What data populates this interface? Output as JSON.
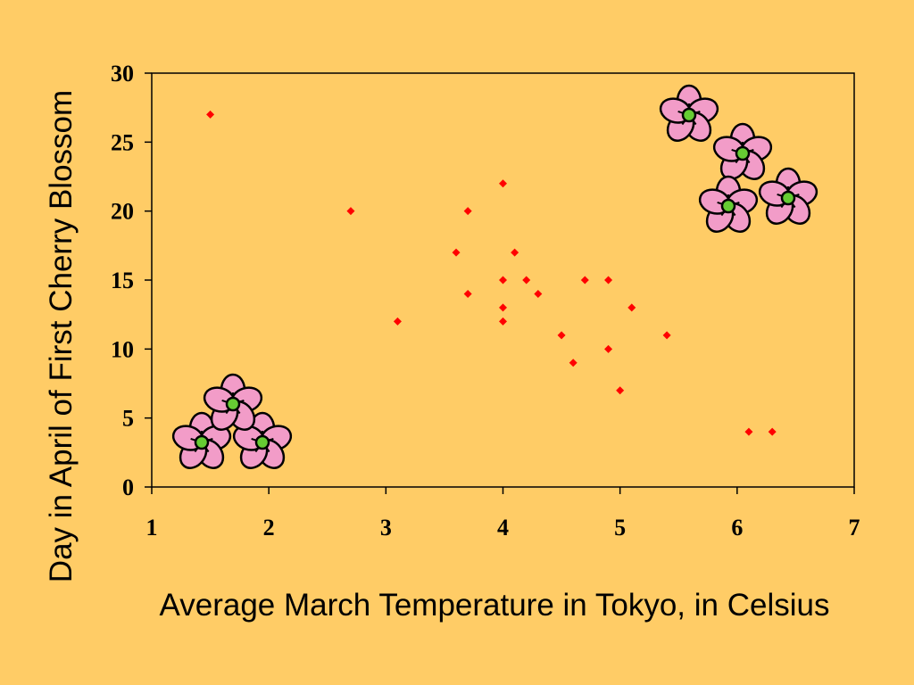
{
  "colors": {
    "background": "#FFCC66",
    "marker": "#FF0000",
    "axis": "#000000",
    "petal": "#F29CC8",
    "flower_center": "#66CC33"
  },
  "decorations": {
    "icon": "cherry-blossom-flower-icon"
  },
  "chart_data": {
    "type": "scatter",
    "title": "",
    "xlabel": "Average March Temperature in Tokyo, in Celsius",
    "ylabel": "Day in April of First Cherry Blossom",
    "xlim": [
      1,
      7
    ],
    "ylim": [
      0,
      30
    ],
    "xticks": [
      "1",
      "2",
      "3",
      "4",
      "5",
      "6",
      "7"
    ],
    "yticks": [
      "0",
      "5",
      "10",
      "15",
      "20",
      "25",
      "30"
    ],
    "grid": false,
    "legend": "none",
    "marker": "diamond",
    "series": [
      {
        "points": [
          [
            1.5,
            27
          ],
          [
            2.7,
            20
          ],
          [
            3.1,
            12
          ],
          [
            3.6,
            17
          ],
          [
            3.7,
            20
          ],
          [
            3.7,
            14
          ],
          [
            4.0,
            22
          ],
          [
            4.0,
            15
          ],
          [
            4.0,
            13
          ],
          [
            4.0,
            12
          ],
          [
            4.1,
            17
          ],
          [
            4.2,
            15
          ],
          [
            4.3,
            14
          ],
          [
            4.5,
            11
          ],
          [
            4.6,
            9
          ],
          [
            4.7,
            15
          ],
          [
            4.9,
            15
          ],
          [
            4.9,
            10
          ],
          [
            5.0,
            7
          ],
          [
            5.1,
            13
          ],
          [
            5.4,
            11
          ],
          [
            6.1,
            4
          ],
          [
            6.3,
            4
          ]
        ]
      }
    ]
  }
}
